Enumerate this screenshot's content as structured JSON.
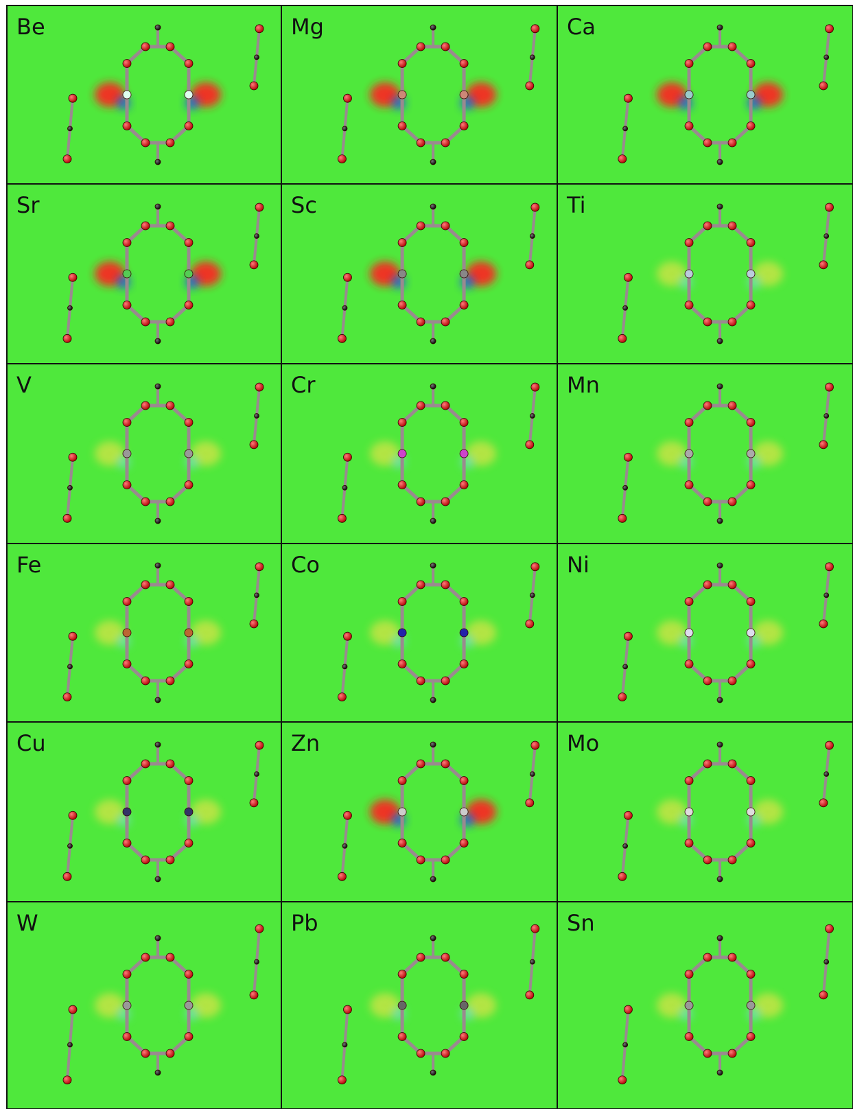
{
  "panels": [
    {
      "label": "Be"
    },
    {
      "label": "Mg"
    },
    {
      "label": "Ca"
    },
    {
      "label": "Sr"
    },
    {
      "label": "Sc"
    },
    {
      "label": "Ti"
    },
    {
      "label": "V"
    },
    {
      "label": "Cr"
    },
    {
      "label": "Mn"
    },
    {
      "label": "Fe"
    },
    {
      "label": "Co"
    },
    {
      "label": "Ni"
    },
    {
      "label": "Cu"
    },
    {
      "label": "Zn"
    },
    {
      "label": "Mo"
    },
    {
      "label": "W"
    },
    {
      "label": "Pb"
    },
    {
      "label": "Sn"
    }
  ]
}
